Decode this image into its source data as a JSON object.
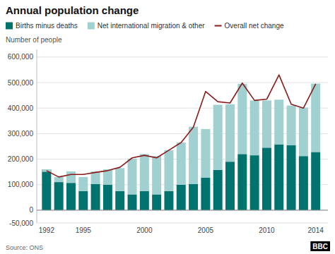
{
  "chart_data": {
    "type": "bar",
    "title": "Annual population change",
    "ylabel": "Number of people",
    "source": "Source: ONS",
    "annotations": [
      "BBC"
    ],
    "x": [
      1992,
      1993,
      1994,
      1995,
      1996,
      1997,
      1998,
      1999,
      2000,
      2001,
      2002,
      2003,
      2004,
      2005,
      2006,
      2007,
      2008,
      2009,
      2010,
      2011,
      2012,
      2013,
      2014
    ],
    "series": [
      {
        "name": "Births minus deaths",
        "color": "#00736e",
        "values": [
          160000,
          110000,
          107000,
          75000,
          102000,
          100000,
          75000,
          62000,
          75000,
          62000,
          75000,
          100000,
          102000,
          128000,
          158000,
          190000,
          220000,
          215000,
          245000,
          258000,
          255000,
          212000,
          228000
        ]
      },
      {
        "name": "Net international migration & other",
        "color": "#a0d0cf",
        "values": [
          -10000,
          20000,
          45000,
          55000,
          50000,
          60000,
          90000,
          140000,
          145000,
          150000,
          160000,
          165000,
          225000,
          190000,
          255000,
          225000,
          275000,
          215000,
          185000,
          175000,
          155000,
          190000,
          268000
        ]
      },
      {
        "name": "Overall net change",
        "type": "line",
        "color": "#8b1a1a",
        "values": [
          155000,
          130000,
          140000,
          140000,
          148000,
          155000,
          168000,
          205000,
          215000,
          205000,
          235000,
          265000,
          325000,
          465000,
          425000,
          420000,
          498000,
          430000,
          435000,
          530000,
          415000,
          400000,
          495000
        ]
      }
    ],
    "stacked": true,
    "grid": true,
    "legend": "top-left",
    "xlim": [
      1991.2,
      2015
    ],
    "xticks": [
      1992,
      1995,
      2000,
      2005,
      2010,
      2014
    ],
    "ylim": [
      -50000,
      630000
    ],
    "yticks": [
      {
        "value": -50000,
        "label": "-50,000"
      },
      0,
      {
        "value": 100000,
        "label": "100,000"
      },
      {
        "value": 200000,
        "label": "200,000"
      },
      {
        "value": 300000,
        "label": "300,000"
      },
      {
        "value": 400000,
        "label": "400,000"
      },
      {
        "value": 500000,
        "label": "500,000"
      },
      {
        "value": 600000,
        "label": "600,000"
      }
    ]
  }
}
